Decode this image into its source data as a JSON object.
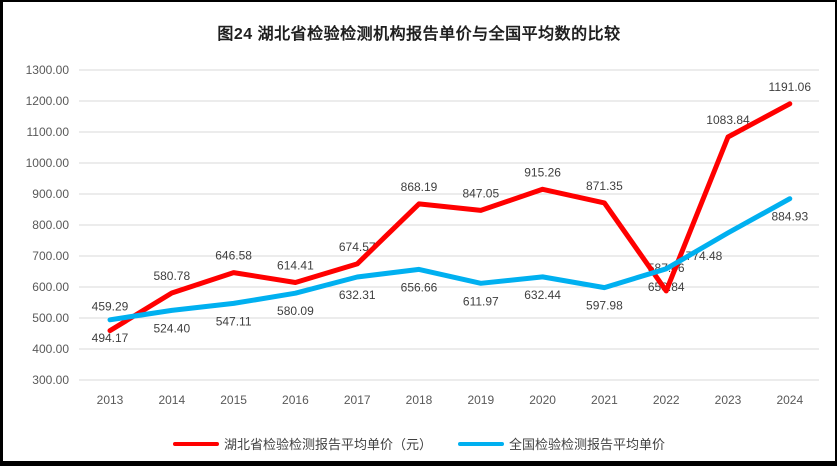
{
  "chart_data": {
    "type": "line",
    "title": "图24 湖北省检验检测机构报告单价与全国平均数的比较",
    "categories": [
      "2013",
      "2014",
      "2015",
      "2016",
      "2017",
      "2018",
      "2019",
      "2020",
      "2021",
      "2022",
      "2023",
      "2024"
    ],
    "series": [
      {
        "id": "hubei",
        "name": "湖北省检验检测报告平均单价（元）",
        "color": "#FF0000",
        "label_position": "above",
        "values": [
          459.29,
          580.78,
          646.58,
          614.41,
          674.57,
          868.19,
          847.05,
          915.26,
          871.35,
          587.46,
          1083.84,
          1191.06
        ]
      },
      {
        "id": "national",
        "name": "全国检验检测报告平均单价",
        "color": "#00B0F0",
        "label_position": "below",
        "values": [
          494.17,
          524.4,
          547.11,
          580.09,
          632.31,
          656.66,
          611.97,
          632.44,
          597.98,
          658.84,
          774.48,
          884.93
        ]
      }
    ],
    "ylim": [
      300,
      1300
    ],
    "ytick_step": 100,
    "ytick_labels": [
      "1300.00",
      "1200.00",
      "1100.00",
      "1000.00",
      "900.00",
      "800.00",
      "700.00",
      "600.00",
      "500.00",
      "400.00",
      "300.00"
    ],
    "value_decimals": 2,
    "grid": true,
    "legend_position": "bottom"
  },
  "colors": {
    "background": "#FFFFFF",
    "frame": "#000000",
    "gridline": "#D9D9D9",
    "axis_text": "#595959",
    "data_label_text": "#3F3F3F",
    "title_text": "#1F1F1F"
  }
}
